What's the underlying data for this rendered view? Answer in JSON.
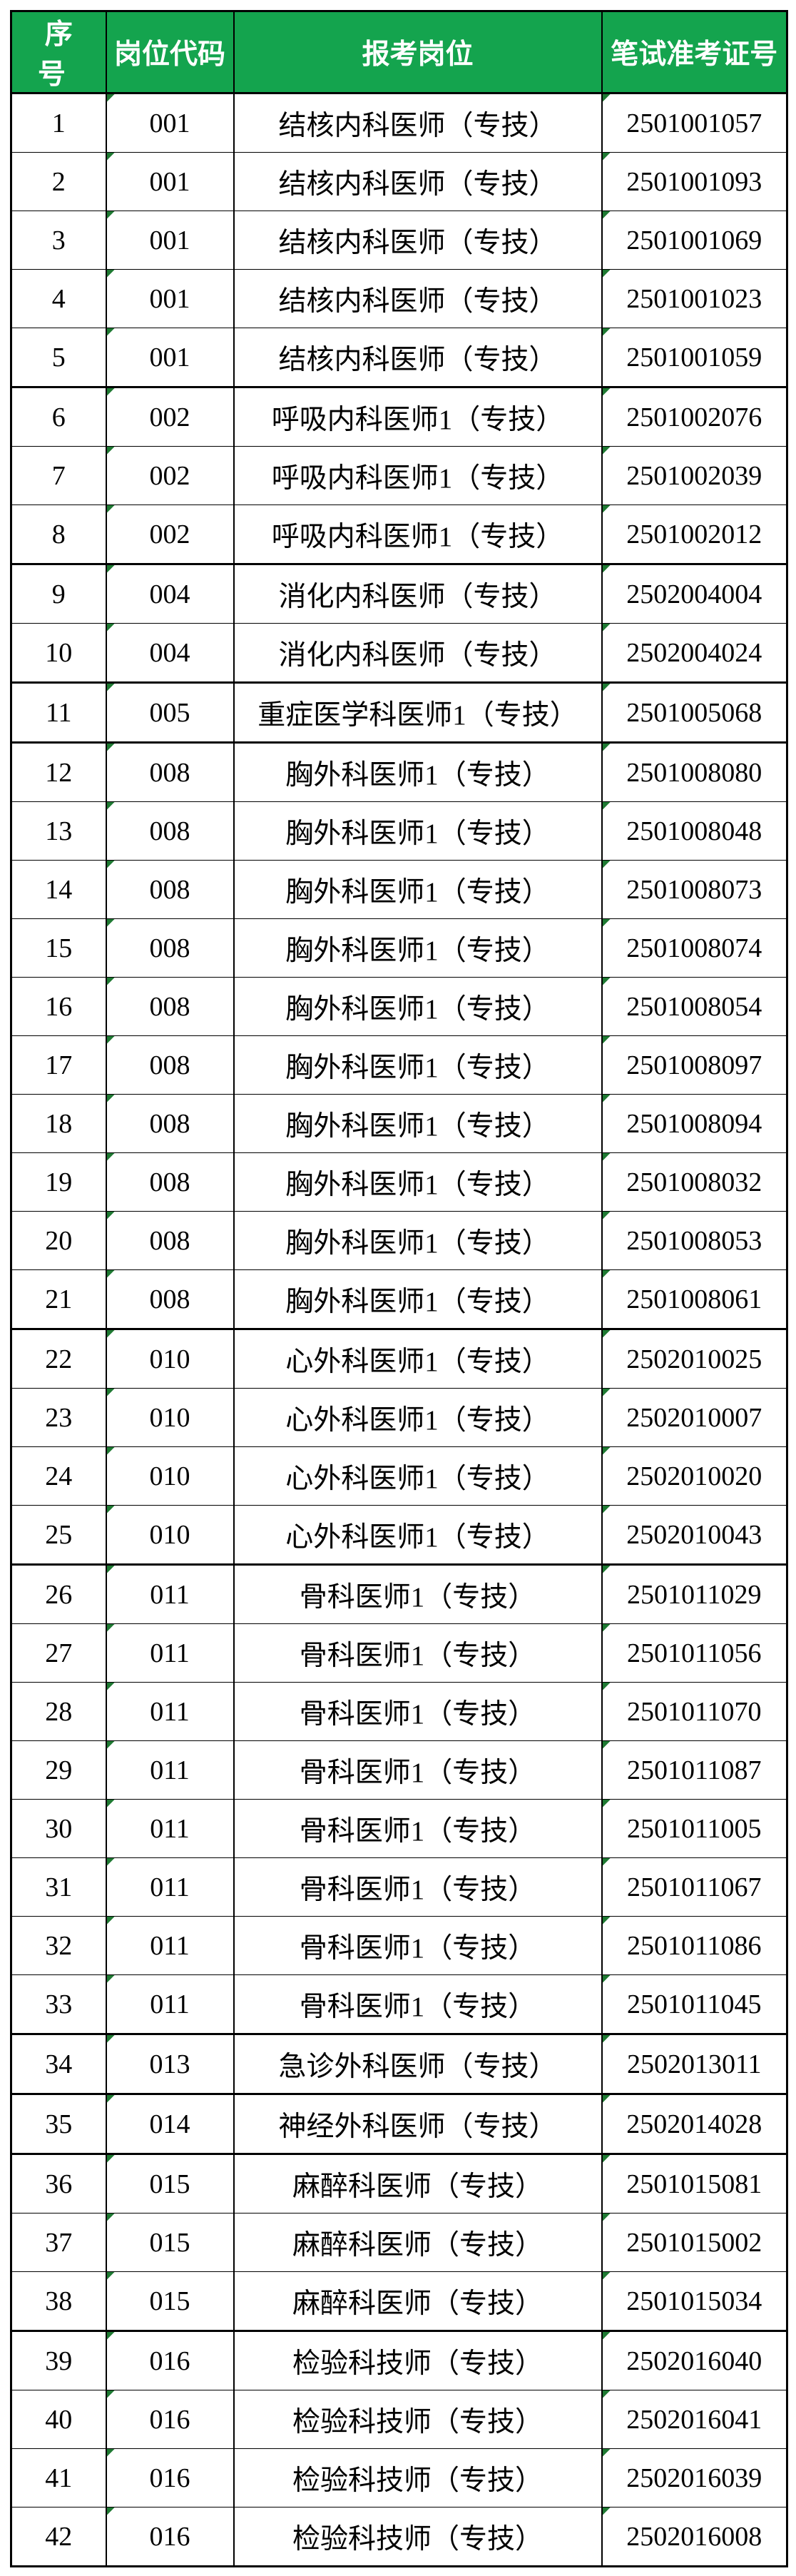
{
  "page": {
    "background": "#FFFFFF"
  },
  "table": {
    "title_semantic": "written-exam-admission-ticket-roster",
    "header_bg": "#14A44E",
    "header_text_color": "#FFFFFF",
    "border_color": "#000000",
    "body_text_color": "#000000",
    "flag_color": "#1F7A33",
    "flag_icon_meaning": "excel-cell-corner-flag",
    "columns": [
      {
        "id": "index",
        "label": "序号"
      },
      {
        "id": "code",
        "label": "岗位代码"
      },
      {
        "id": "position",
        "label": "报考岗位"
      },
      {
        "id": "ticket",
        "label": "笔试准考证号"
      }
    ],
    "rows": [
      {
        "index": "1",
        "code": "001",
        "position": "结核内科医师（专技）",
        "ticket": "2501001057",
        "group_end": false
      },
      {
        "index": "2",
        "code": "001",
        "position": "结核内科医师（专技）",
        "ticket": "2501001093",
        "group_end": false
      },
      {
        "index": "3",
        "code": "001",
        "position": "结核内科医师（专技）",
        "ticket": "2501001069",
        "group_end": false
      },
      {
        "index": "4",
        "code": "001",
        "position": "结核内科医师（专技）",
        "ticket": "2501001023",
        "group_end": false
      },
      {
        "index": "5",
        "code": "001",
        "position": "结核内科医师（专技）",
        "ticket": "2501001059",
        "group_end": true
      },
      {
        "index": "6",
        "code": "002",
        "position": "呼吸内科医师1（专技）",
        "ticket": "2501002076",
        "group_end": false
      },
      {
        "index": "7",
        "code": "002",
        "position": "呼吸内科医师1（专技）",
        "ticket": "2501002039",
        "group_end": false
      },
      {
        "index": "8",
        "code": "002",
        "position": "呼吸内科医师1（专技）",
        "ticket": "2501002012",
        "group_end": true
      },
      {
        "index": "9",
        "code": "004",
        "position": "消化内科医师（专技）",
        "ticket": "2502004004",
        "group_end": false
      },
      {
        "index": "10",
        "code": "004",
        "position": "消化内科医师（专技）",
        "ticket": "2502004024",
        "group_end": true
      },
      {
        "index": "11",
        "code": "005",
        "position": "重症医学科医师1（专技）",
        "ticket": "2501005068",
        "group_end": true
      },
      {
        "index": "12",
        "code": "008",
        "position": "胸外科医师1（专技）",
        "ticket": "2501008080",
        "group_end": false
      },
      {
        "index": "13",
        "code": "008",
        "position": "胸外科医师1（专技）",
        "ticket": "2501008048",
        "group_end": false
      },
      {
        "index": "14",
        "code": "008",
        "position": "胸外科医师1（专技）",
        "ticket": "2501008073",
        "group_end": false
      },
      {
        "index": "15",
        "code": "008",
        "position": "胸外科医师1（专技）",
        "ticket": "2501008074",
        "group_end": false
      },
      {
        "index": "16",
        "code": "008",
        "position": "胸外科医师1（专技）",
        "ticket": "2501008054",
        "group_end": false
      },
      {
        "index": "17",
        "code": "008",
        "position": "胸外科医师1（专技）",
        "ticket": "2501008097",
        "group_end": false
      },
      {
        "index": "18",
        "code": "008",
        "position": "胸外科医师1（专技）",
        "ticket": "2501008094",
        "group_end": false
      },
      {
        "index": "19",
        "code": "008",
        "position": "胸外科医师1（专技）",
        "ticket": "2501008032",
        "group_end": false
      },
      {
        "index": "20",
        "code": "008",
        "position": "胸外科医师1（专技）",
        "ticket": "2501008053",
        "group_end": false
      },
      {
        "index": "21",
        "code": "008",
        "position": "胸外科医师1（专技）",
        "ticket": "2501008061",
        "group_end": true
      },
      {
        "index": "22",
        "code": "010",
        "position": "心外科医师1（专技）",
        "ticket": "2502010025",
        "group_end": false
      },
      {
        "index": "23",
        "code": "010",
        "position": "心外科医师1（专技）",
        "ticket": "2502010007",
        "group_end": false
      },
      {
        "index": "24",
        "code": "010",
        "position": "心外科医师1（专技）",
        "ticket": "2502010020",
        "group_end": false
      },
      {
        "index": "25",
        "code": "010",
        "position": "心外科医师1（专技）",
        "ticket": "2502010043",
        "group_end": true
      },
      {
        "index": "26",
        "code": "011",
        "position": "骨科医师1（专技）",
        "ticket": "2501011029",
        "group_end": false
      },
      {
        "index": "27",
        "code": "011",
        "position": "骨科医师1（专技）",
        "ticket": "2501011056",
        "group_end": false
      },
      {
        "index": "28",
        "code": "011",
        "position": "骨科医师1（专技）",
        "ticket": "2501011070",
        "group_end": false
      },
      {
        "index": "29",
        "code": "011",
        "position": "骨科医师1（专技）",
        "ticket": "2501011087",
        "group_end": false
      },
      {
        "index": "30",
        "code": "011",
        "position": "骨科医师1（专技）",
        "ticket": "2501011005",
        "group_end": false
      },
      {
        "index": "31",
        "code": "011",
        "position": "骨科医师1（专技）",
        "ticket": "2501011067",
        "group_end": false
      },
      {
        "index": "32",
        "code": "011",
        "position": "骨科医师1（专技）",
        "ticket": "2501011086",
        "group_end": false
      },
      {
        "index": "33",
        "code": "011",
        "position": "骨科医师1（专技）",
        "ticket": "2501011045",
        "group_end": true
      },
      {
        "index": "34",
        "code": "013",
        "position": "急诊外科医师（专技）",
        "ticket": "2502013011",
        "group_end": true
      },
      {
        "index": "35",
        "code": "014",
        "position": "神经外科医师（专技）",
        "ticket": "2502014028",
        "group_end": true
      },
      {
        "index": "36",
        "code": "015",
        "position": "麻醉科医师（专技）",
        "ticket": "2501015081",
        "group_end": false
      },
      {
        "index": "37",
        "code": "015",
        "position": "麻醉科医师（专技）",
        "ticket": "2501015002",
        "group_end": false
      },
      {
        "index": "38",
        "code": "015",
        "position": "麻醉科医师（专技）",
        "ticket": "2501015034",
        "group_end": true
      },
      {
        "index": "39",
        "code": "016",
        "position": "检验科技师（专技）",
        "ticket": "2502016040",
        "group_end": false
      },
      {
        "index": "40",
        "code": "016",
        "position": "检验科技师（专技）",
        "ticket": "2502016041",
        "group_end": false
      },
      {
        "index": "41",
        "code": "016",
        "position": "检验科技师（专技）",
        "ticket": "2502016039",
        "group_end": false
      },
      {
        "index": "42",
        "code": "016",
        "position": "检验科技师（专技）",
        "ticket": "2502016008",
        "group_end": true
      }
    ]
  }
}
